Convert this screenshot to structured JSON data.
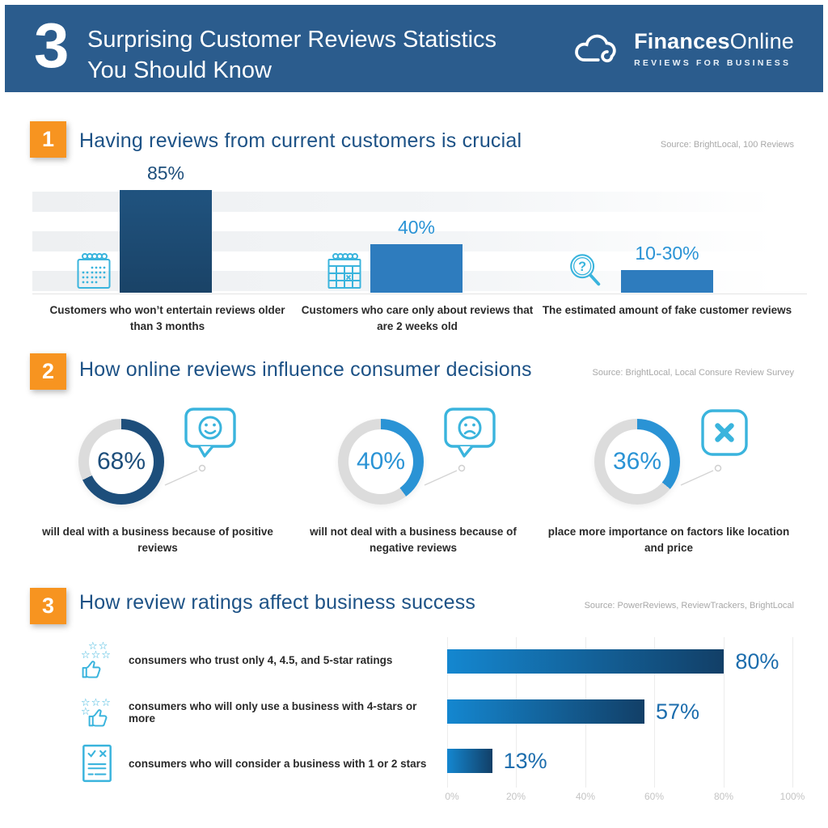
{
  "colors": {
    "header_bg": "#2b5c8d",
    "orange": "#f79420",
    "title_blue": "#1d5286",
    "navy": "#1d4e7b",
    "bright_blue": "#2a93d5",
    "medium_bar": "#2e7cbe",
    "teal_icon": "#3ab4dd",
    "track_gray": "#dcdcdc",
    "caption_text": "#2a2a2a",
    "source_text": "#a8a8a8",
    "axis_text": "#c4c4c4",
    "hbar_gradient_start": "#1487d0",
    "hbar_gradient_end": "#123f67",
    "value_blue": "#1c6dad"
  },
  "header": {
    "big_number": "3",
    "title_line1": "Surprising Customer Reviews Statistics",
    "title_line2": "You Should Know",
    "logo_brand_bold": "Finances",
    "logo_brand_regular": "Online",
    "logo_tagline": "REVIEWS FOR BUSINESS"
  },
  "section1": {
    "number": "1",
    "title": "Having reviews from current customers is crucial",
    "source": "Source: BrightLocal, 100 Reviews",
    "bars": [
      {
        "value_label": "85%",
        "value": 85,
        "bar_value": 85,
        "style": "dark",
        "icon": "calendar-icon",
        "caption": "Customers who won’t entertain reviews older than 3 months"
      },
      {
        "value_label": "40%",
        "value": 40,
        "bar_value": 40,
        "style": "medium",
        "icon": "calendar-x-icon",
        "caption": "Customers who care only about reviews that are 2 weeks old"
      },
      {
        "value_label": "10-30%",
        "value": "10-30",
        "bar_value": 19,
        "style": "medium",
        "icon": "magnifier-question-icon",
        "caption": "The estimated amount of fake customer reviews"
      }
    ]
  },
  "section2": {
    "number": "2",
    "title": "How online reviews influence consumer decisions",
    "source": "Source: BrightLocal, Local Consure Review Survey",
    "donuts": [
      {
        "percent": 68,
        "label": "68%",
        "theme": "dark",
        "icon": "smiley-speech-bubble-icon",
        "caption": "will deal with a business because of positive reviews"
      },
      {
        "percent": 40,
        "label": "40%",
        "theme": "bright",
        "icon": "sad-speech-bubble-icon",
        "caption": "will not deal with a business because of negative reviews"
      },
      {
        "percent": 36,
        "label": "36%",
        "theme": "bright",
        "icon": "x-square-icon",
        "caption": "place more importance on factors like location and price"
      }
    ]
  },
  "section3": {
    "number": "3",
    "title": "How review ratings affect business success",
    "source": "Source: PowerReviews, ReviewTrackers, BrightLocal",
    "rows": [
      {
        "label": "consumers who trust only 4, 4.5, and 5-star ratings",
        "value": 80,
        "value_label": "80%",
        "icon": "thumbs-up-five-stars-icon",
        "stars_top": "☆☆",
        "stars_bottom": "☆☆☆"
      },
      {
        "label": "consumers who will only use a business with 4-stars or more",
        "value": 57,
        "value_label": "57%",
        "icon": "thumbs-up-four-stars-icon",
        "stars_top": "☆☆☆",
        "stars_bottom": "☆"
      },
      {
        "label": "consumers who will consider a business with 1 or 2 stars",
        "value": 13,
        "value_label": "13%",
        "icon": "checklist-icon"
      }
    ],
    "axis_ticks": [
      "0%",
      "20%",
      "40%",
      "60%",
      "80%",
      "100%"
    ]
  },
  "chart_data": [
    {
      "type": "bar",
      "title": "Having reviews from current customers is crucial",
      "source": "Source: BrightLocal, 100 Reviews",
      "categories": [
        "Customers who won’t entertain reviews older than 3 months",
        "Customers who care only about reviews that are 2 weeks old",
        "The estimated amount of fake customer reviews"
      ],
      "values": [
        85,
        40,
        "10-30"
      ],
      "value_labels": [
        "85%",
        "40%",
        "10-30%"
      ],
      "unit": "%",
      "grid": false,
      "legend": false
    },
    {
      "type": "pie",
      "subtype": "donut",
      "title": "How online reviews influence consumer decisions",
      "source": "Source: BrightLocal, Local Consure Review Survey",
      "categories": [
        "will deal with a business because of positive reviews",
        "will not deal with a business because of negative reviews",
        "place more importance on factors like location and price"
      ],
      "values": [
        68,
        40,
        36
      ],
      "unit": "%"
    },
    {
      "type": "bar",
      "orientation": "horizontal",
      "title": "How review ratings affect business success",
      "source": "Source: PowerReviews, ReviewTrackers, BrightLocal",
      "categories": [
        "consumers who trust only 4, 4.5, and 5-star ratings",
        "consumers who will only use a business with 4-stars or more",
        "consumers who will consider a business with 1 or 2 stars"
      ],
      "values": [
        80,
        57,
        13
      ],
      "value_labels": [
        "80%",
        "57%",
        "13%"
      ],
      "unit": "%",
      "xlim": [
        0,
        100
      ],
      "x_ticks": [
        "0%",
        "20%",
        "40%",
        "60%",
        "80%",
        "100%"
      ],
      "grid": true
    }
  ]
}
